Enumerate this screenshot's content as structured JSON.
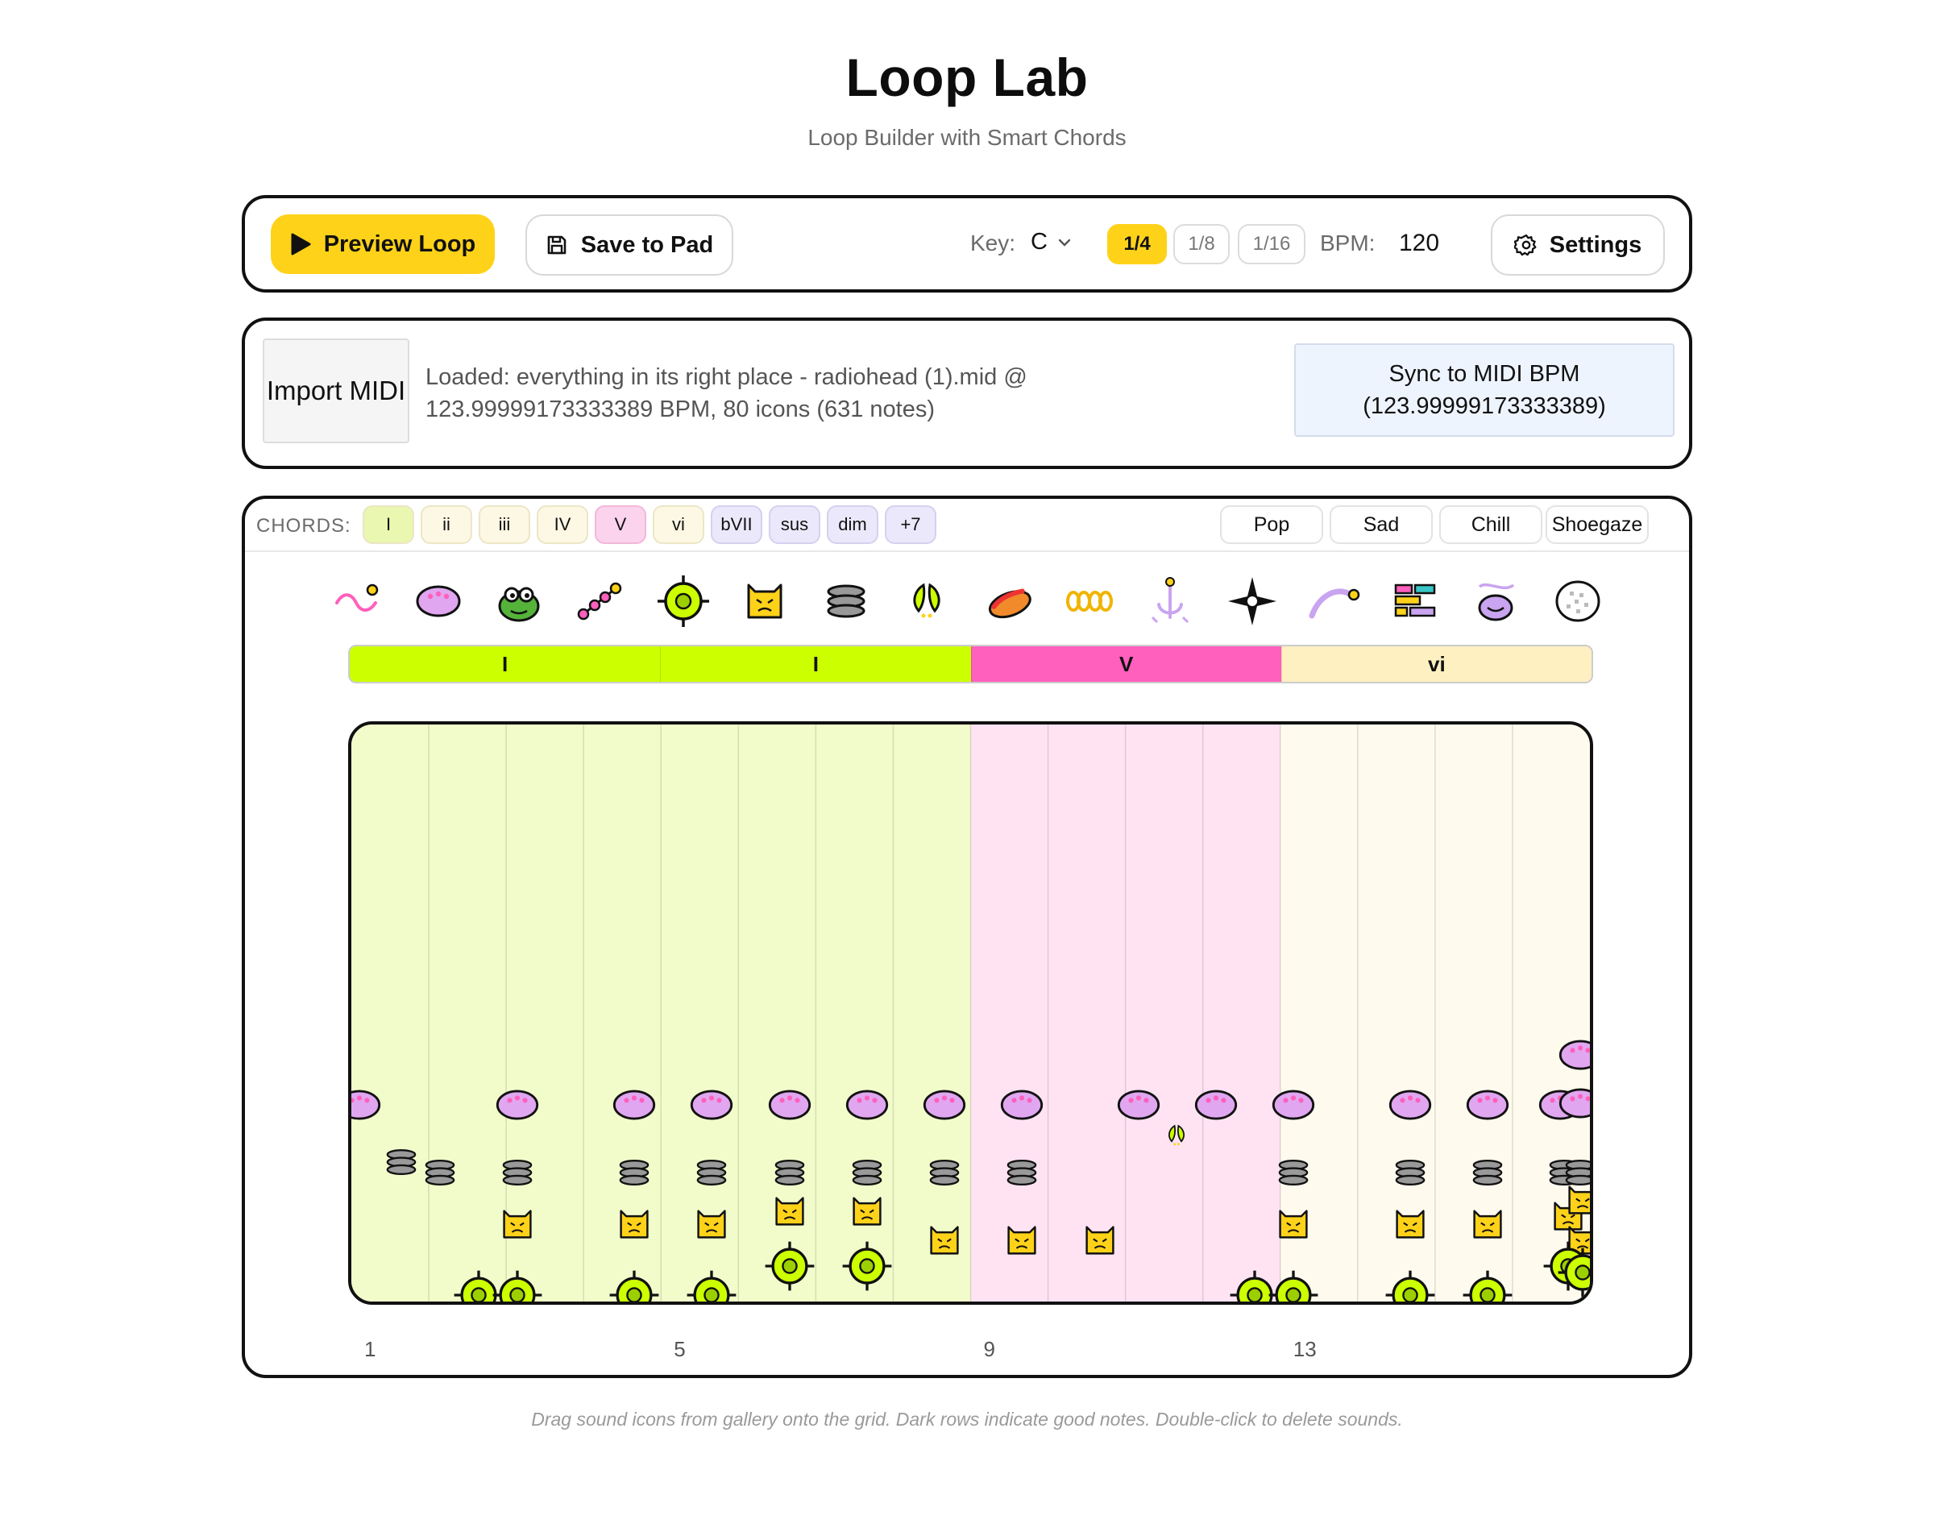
{
  "header": {
    "title": "Loop Lab",
    "subtitle": "Loop Builder with Smart Chords"
  },
  "toolbar": {
    "preview_label": "Preview Loop",
    "save_label": "Save to Pad",
    "key_label": "Key:",
    "key_value": "C",
    "divisions": [
      {
        "label": "1/4",
        "active": true
      },
      {
        "label": "1/8",
        "active": false
      },
      {
        "label": "1/16",
        "active": false
      }
    ],
    "bpm_label": "BPM:",
    "bpm_value": "120",
    "settings_label": "Settings"
  },
  "midi": {
    "import_label": "Import MIDI",
    "loaded_text": "Loaded: everything in its right place - radiohead (1).mid @ 123.99999173333389 BPM, 80 icons (631 notes)",
    "sync_label": "Sync to MIDI BPM (123.99999173333389)"
  },
  "chords": {
    "label": "CHORDS:",
    "chips": [
      {
        "label": "I",
        "color": "#eaf7b0"
      },
      {
        "label": "ii",
        "color": "#fdf8e4"
      },
      {
        "label": "iii",
        "color": "#fdf8e4"
      },
      {
        "label": "IV",
        "color": "#fdf8e4"
      },
      {
        "label": "V",
        "color": "#fbd3ec"
      },
      {
        "label": "vi",
        "color": "#fdf8e4"
      },
      {
        "label": "bVII",
        "color": "#ece8fb"
      },
      {
        "label": "sus",
        "color": "#ece8fb"
      },
      {
        "label": "dim",
        "color": "#ece8fb"
      },
      {
        "label": "+7",
        "color": "#ece8fb"
      }
    ],
    "presets": [
      "Pop",
      "Sad",
      "Chill",
      "Shoegaze"
    ]
  },
  "gallery": [
    "squiggle-sound-icon",
    "pink-blob-sound-icon",
    "frog-sound-icon",
    "bead-chain-sound-icon",
    "crosshair-orb-sound-icon",
    "yellow-cat-sound-icon",
    "disc-stack-sound-icon",
    "leaf-pair-sound-icon",
    "hotdog-sound-icon",
    "gold-rings-sound-icon",
    "anchor-sound-icon",
    "sparkle-star-sound-icon",
    "comet-arc-sound-icon",
    "brick-blocks-sound-icon",
    "purple-bowl-sound-icon",
    "dotted-egg-sound-icon"
  ],
  "timeline": {
    "segments": [
      {
        "label": "I",
        "color": "#ccff00",
        "beats": 4
      },
      {
        "label": "I",
        "color": "#ccff00",
        "beats": 4
      },
      {
        "label": "V",
        "color": "#ff5fbd",
        "beats": 4
      },
      {
        "label": "vi",
        "color": "#fff0c2",
        "beats": 4
      }
    ],
    "column_tints": [
      "#f2fccb",
      "#ffe3f3",
      "#fffaee"
    ],
    "bar_numbers": [
      "1",
      "5",
      "9",
      "13"
    ]
  },
  "colors": {
    "accent": "#ffd21a",
    "outline": "#111111"
  },
  "hint": "Drag sound icons from gallery onto the grid. Dark rows indicate good notes. Double-click to delete sounds."
}
